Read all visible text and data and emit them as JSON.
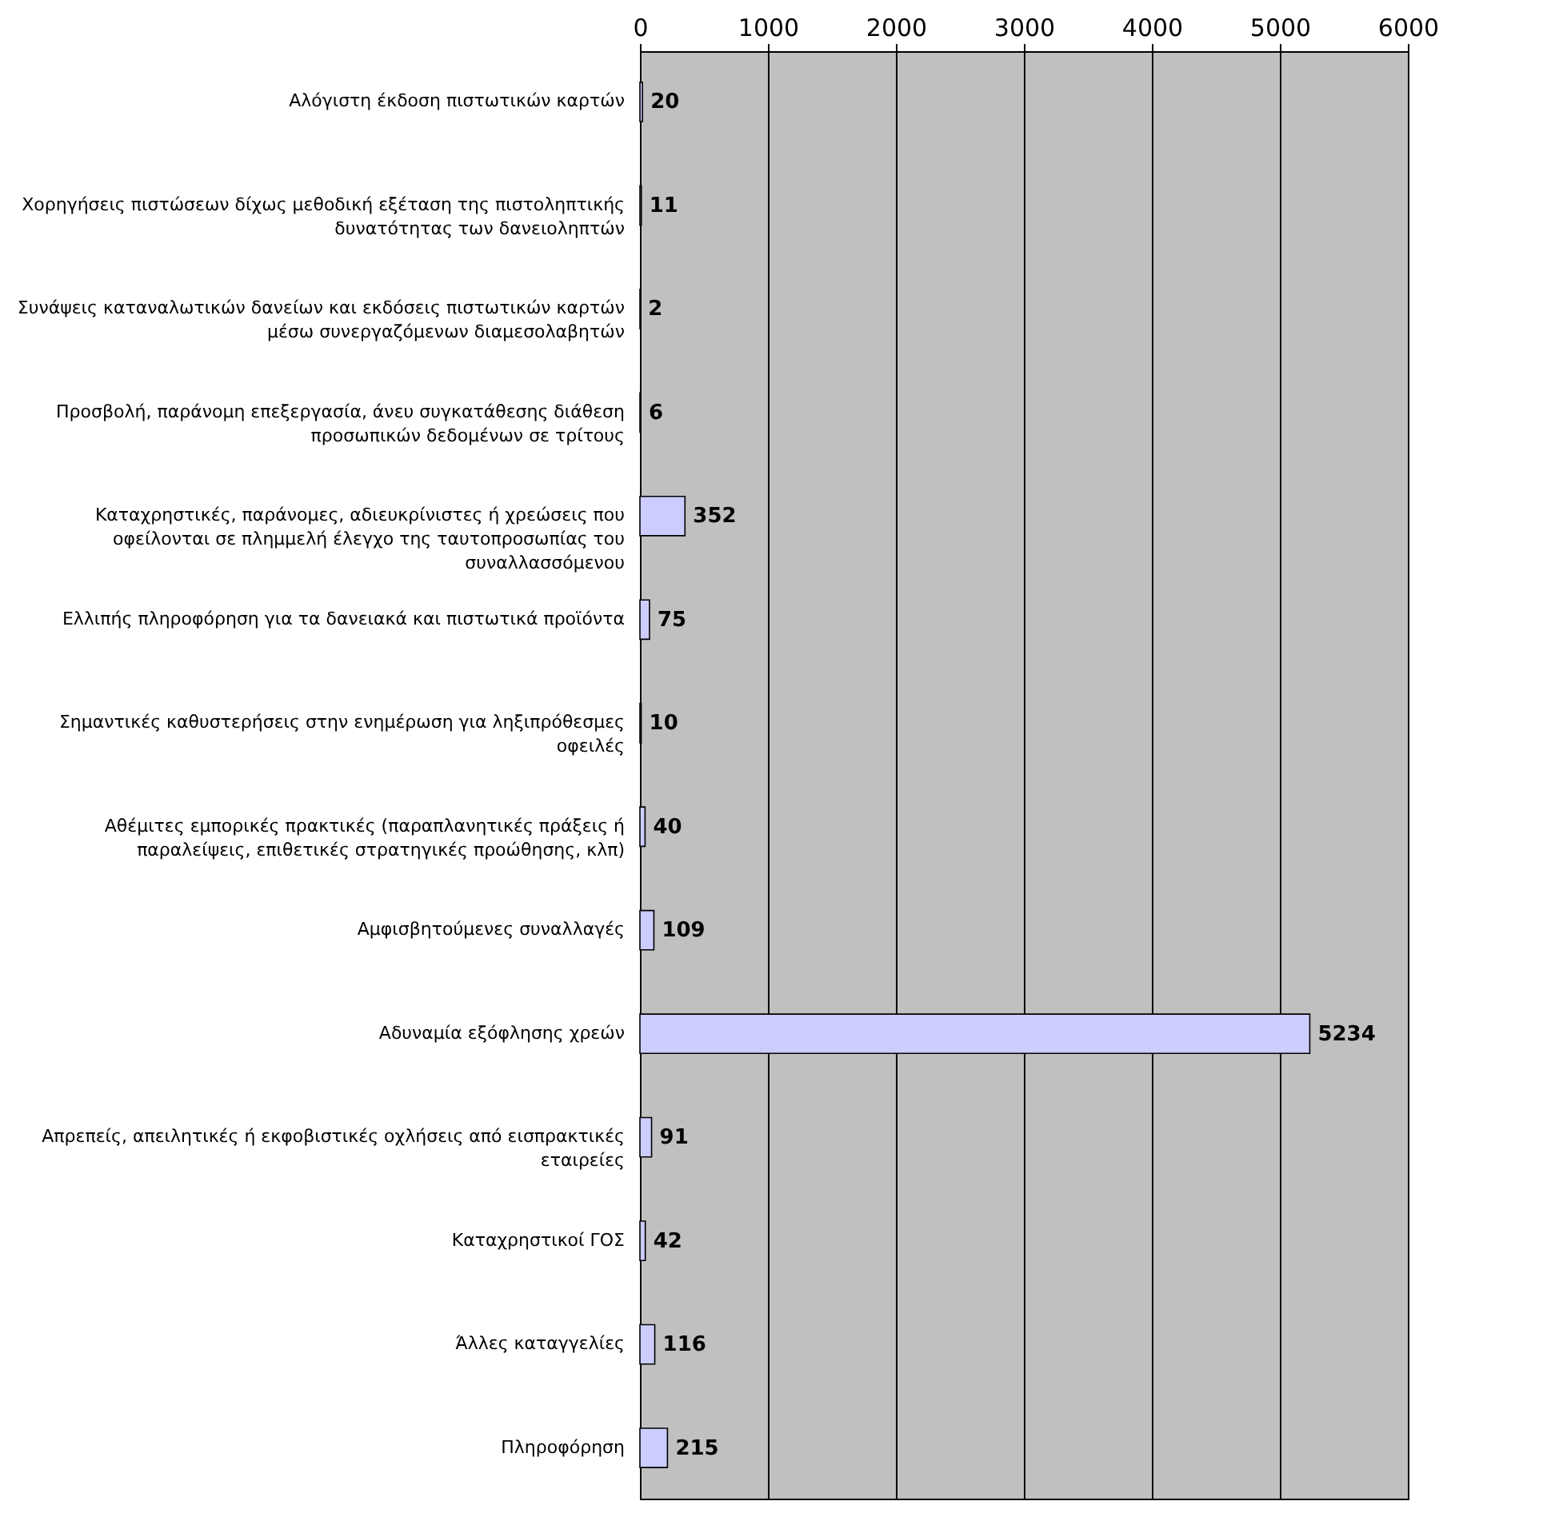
{
  "chart_data": {
    "type": "bar",
    "orientation": "horizontal",
    "categories": [
      "Αλόγιστη έκδοση πιστωτικών καρτών",
      "Χορηγήσεις πιστώσεων δίχως μεθοδική εξέταση της πιστοληπτικής δυνατότητας των δανειοληπτών",
      "Συνάψεις καταναλωτικών δανείων και εκδόσεις πιστωτικών καρτών μέσω συνεργαζόμενων διαμεσολαβητών",
      "Προσβολή, παράνομη επεξεργασία, άνευ συγκατάθεσης διάθεση προσωπικών δεδομένων σε τρίτους",
      "Καταχρηστικές, παράνομες, αδιευκρίνιστες ή χρεώσεις που οφείλονται σε πλημμελή έλεγχο της ταυτοπροσωπίας του συναλλασσόμενου",
      "Ελλιπής πληροφόρηση για τα δανειακά και πιστωτικά προϊόντα",
      "Σημαντικές καθυστερήσεις στην ενημέρωση για ληξιπρόθεσμες οφειλές",
      "Αθέμιτες εμπορικές πρακτικές (παραπλανητικές πράξεις ή παραλείψεις, επιθετικές στρατηγικές προώθησης, κλπ)",
      "Αμφισβητούμενες συναλλαγές",
      "Αδυναμία εξόφλησης χρεών",
      "Απρεπείς, απειλητικές ή εκφοβιστικές οχλήσεις από εισπρακτικές εταιρείες",
      "Καταχρηστικοί ΓΟΣ",
      "Άλλες καταγγελίες",
      "Πληροφόρηση"
    ],
    "values": [
      20,
      11,
      2,
      6,
      352,
      75,
      10,
      40,
      109,
      5234,
      91,
      42,
      116,
      215
    ],
    "color": "#ccccff",
    "xlim": [
      0,
      6000
    ],
    "xticks": [
      0,
      1000,
      2000,
      3000,
      4000,
      5000,
      6000
    ],
    "grid": "x",
    "data_labels": true
  }
}
